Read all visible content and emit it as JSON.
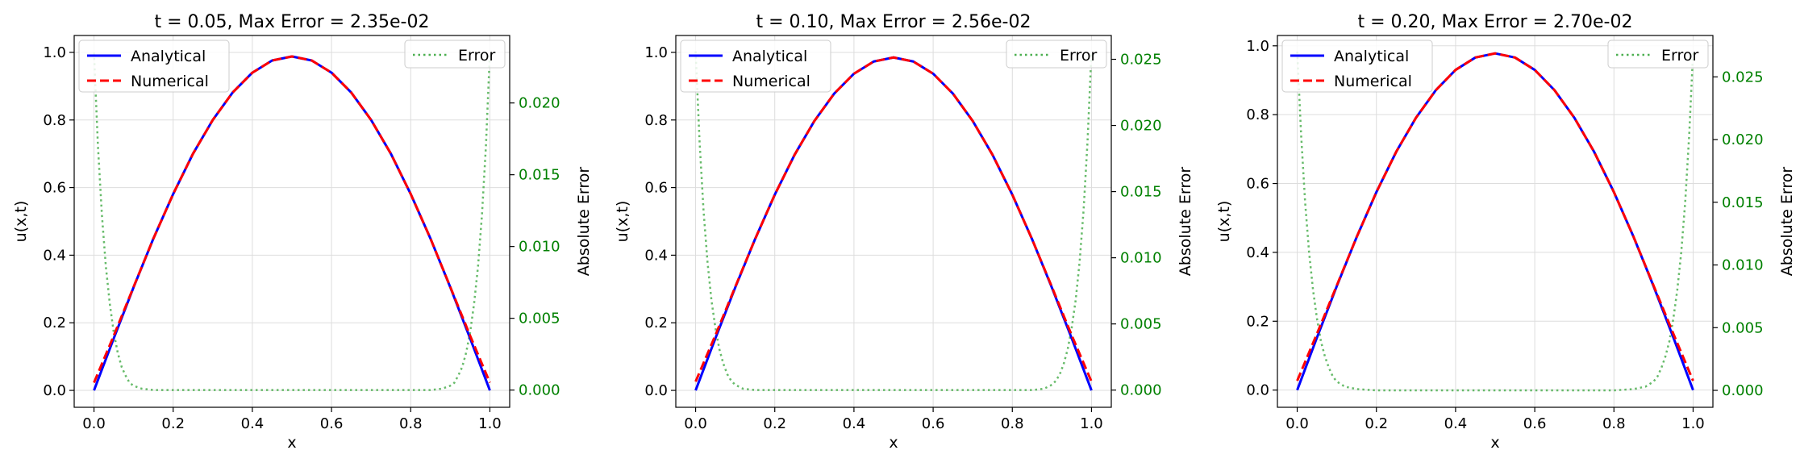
{
  "colors": {
    "analytical": "#0000ff",
    "numerical": "#ff0000",
    "error": "#4caf50",
    "error_axis": "#008000",
    "grid": "#dddddd"
  },
  "chart_data": [
    {
      "type": "line",
      "title": "t = 0.05, Max Error = 2.35e-02",
      "xlabel": "x",
      "ylabel": "u(x,t)",
      "ylabel_right": "Absolute Error",
      "xlim": [
        -0.05,
        1.05
      ],
      "ylim": [
        -0.05,
        1.05
      ],
      "ylim_right": [
        -0.0012,
        0.0247
      ],
      "xticks": [
        "0.0",
        "0.2",
        "0.4",
        "0.6",
        "0.8",
        "1.0"
      ],
      "yticks": [
        "0.0",
        "0.2",
        "0.4",
        "0.6",
        "0.8",
        "1.0"
      ],
      "yticks_right": [
        "0.000",
        "0.005",
        "0.010",
        "0.015",
        "0.020"
      ],
      "grid": true,
      "legend_left": {
        "placement": "upper-left",
        "entries": [
          "Analytical",
          "Numerical"
        ]
      },
      "legend_right": {
        "placement": "upper-right",
        "entries": [
          "Error"
        ]
      },
      "series": [
        {
          "name": "Analytical",
          "axis": "left",
          "style": "solid",
          "x": [
            0,
            0.05,
            0.1,
            0.15,
            0.2,
            0.25,
            0.3,
            0.35,
            0.4,
            0.45,
            0.5,
            0.55,
            0.6,
            0.65,
            0.7,
            0.75,
            0.8,
            0.85,
            0.9,
            0.95,
            1.0
          ],
          "y": [
            0.0,
            0.154,
            0.305,
            0.449,
            0.581,
            0.7,
            0.8,
            0.881,
            0.94,
            0.976,
            0.988,
            0.976,
            0.94,
            0.881,
            0.8,
            0.7,
            0.581,
            0.449,
            0.305,
            0.154,
            0.0
          ]
        },
        {
          "name": "Numerical",
          "axis": "left",
          "style": "dashed",
          "x": [
            0,
            0.05,
            0.1,
            0.15,
            0.2,
            0.25,
            0.3,
            0.35,
            0.4,
            0.45,
            0.5,
            0.55,
            0.6,
            0.65,
            0.7,
            0.75,
            0.8,
            0.85,
            0.9,
            0.95,
            1.0
          ],
          "y": [
            0.023,
            0.162,
            0.306,
            0.449,
            0.581,
            0.7,
            0.8,
            0.881,
            0.94,
            0.976,
            0.988,
            0.976,
            0.94,
            0.881,
            0.8,
            0.7,
            0.581,
            0.449,
            0.306,
            0.162,
            0.023
          ]
        },
        {
          "name": "Error",
          "axis": "right",
          "style": "dotted",
          "x": [
            0,
            0.01,
            0.02,
            0.03,
            0.04,
            0.05,
            0.06,
            0.07,
            0.08,
            0.09,
            0.1,
            0.12,
            0.15,
            0.2,
            0.3,
            0.4,
            0.5,
            0.6,
            0.7,
            0.8,
            0.85,
            0.88,
            0.9,
            0.91,
            0.92,
            0.93,
            0.94,
            0.95,
            0.96,
            0.97,
            0.98,
            0.99,
            1.0
          ],
          "y": [
            0.0235,
            0.017,
            0.0122,
            0.0086,
            0.006,
            0.004,
            0.0026,
            0.0016,
            0.001,
            0.0005,
            0.0003,
            0.0001,
            0.0,
            0.0,
            0.0,
            0.0,
            0.0,
            0.0,
            0.0,
            0.0,
            0.0,
            0.0001,
            0.0003,
            0.0005,
            0.001,
            0.0016,
            0.0026,
            0.004,
            0.006,
            0.0086,
            0.0122,
            0.017,
            0.0235
          ]
        }
      ]
    },
    {
      "type": "line",
      "title": "t = 0.10, Max Error = 2.56e-02",
      "xlabel": "x",
      "ylabel": "u(x,t)",
      "ylabel_right": "Absolute Error",
      "xlim": [
        -0.05,
        1.05
      ],
      "ylim": [
        -0.05,
        1.05
      ],
      "ylim_right": [
        -0.0013,
        0.0268
      ],
      "xticks": [
        "0.0",
        "0.2",
        "0.4",
        "0.6",
        "0.8",
        "1.0"
      ],
      "yticks": [
        "0.0",
        "0.2",
        "0.4",
        "0.6",
        "0.8",
        "1.0"
      ],
      "yticks_right": [
        "0.000",
        "0.005",
        "0.010",
        "0.015",
        "0.020",
        "0.025"
      ],
      "grid": true,
      "legend_left": {
        "placement": "upper-left",
        "entries": [
          "Analytical",
          "Numerical"
        ]
      },
      "legend_right": {
        "placement": "upper-right",
        "entries": [
          "Error"
        ]
      },
      "series": [
        {
          "name": "Analytical",
          "axis": "left",
          "style": "solid",
          "x": [
            0,
            0.05,
            0.1,
            0.15,
            0.2,
            0.25,
            0.3,
            0.35,
            0.4,
            0.45,
            0.5,
            0.55,
            0.6,
            0.65,
            0.7,
            0.75,
            0.8,
            0.85,
            0.9,
            0.95,
            1.0
          ],
          "y": [
            0.0,
            0.154,
            0.304,
            0.447,
            0.579,
            0.697,
            0.797,
            0.878,
            0.937,
            0.973,
            0.985,
            0.973,
            0.937,
            0.878,
            0.797,
            0.697,
            0.579,
            0.447,
            0.304,
            0.154,
            0.0
          ]
        },
        {
          "name": "Numerical",
          "axis": "left",
          "style": "dashed",
          "x": [
            0,
            0.05,
            0.1,
            0.15,
            0.2,
            0.25,
            0.3,
            0.35,
            0.4,
            0.45,
            0.5,
            0.55,
            0.6,
            0.65,
            0.7,
            0.75,
            0.8,
            0.85,
            0.9,
            0.95,
            1.0
          ],
          "y": [
            0.026,
            0.163,
            0.306,
            0.447,
            0.579,
            0.697,
            0.797,
            0.878,
            0.937,
            0.973,
            0.985,
            0.973,
            0.937,
            0.878,
            0.797,
            0.697,
            0.579,
            0.447,
            0.306,
            0.163,
            0.026
          ]
        },
        {
          "name": "Error",
          "axis": "right",
          "style": "dotted",
          "x": [
            0,
            0.01,
            0.02,
            0.03,
            0.04,
            0.05,
            0.06,
            0.07,
            0.08,
            0.09,
            0.1,
            0.12,
            0.15,
            0.2,
            0.3,
            0.4,
            0.5,
            0.6,
            0.7,
            0.8,
            0.85,
            0.88,
            0.9,
            0.91,
            0.92,
            0.93,
            0.94,
            0.95,
            0.96,
            0.97,
            0.98,
            0.99,
            1.0
          ],
          "y": [
            0.0256,
            0.0188,
            0.0136,
            0.0097,
            0.0068,
            0.0047,
            0.0031,
            0.002,
            0.0012,
            0.0007,
            0.0004,
            0.0001,
            0.0,
            0.0,
            0.0,
            0.0,
            0.0,
            0.0,
            0.0,
            0.0,
            0.0,
            0.0001,
            0.0004,
            0.0007,
            0.0012,
            0.002,
            0.0031,
            0.0047,
            0.0068,
            0.0097,
            0.0136,
            0.0188,
            0.0256
          ]
        }
      ]
    },
    {
      "type": "line",
      "title": "t = 0.20, Max Error = 2.70e-02",
      "xlabel": "x",
      "ylabel": "u(x,t)",
      "ylabel_right": "Absolute Error",
      "xlim": [
        -0.05,
        1.05
      ],
      "ylim": [
        -0.05,
        1.03
      ],
      "ylim_right": [
        -0.00135,
        0.0283
      ],
      "xticks": [
        "0.0",
        "0.2",
        "0.4",
        "0.6",
        "0.8",
        "1.0"
      ],
      "yticks": [
        "0.0",
        "0.2",
        "0.4",
        "0.6",
        "0.8",
        "1.0"
      ],
      "yticks_right": [
        "0.000",
        "0.005",
        "0.010",
        "0.015",
        "0.020",
        "0.025"
      ],
      "grid": true,
      "legend_left": {
        "placement": "upper-left",
        "entries": [
          "Analytical",
          "Numerical"
        ]
      },
      "legend_right": {
        "placement": "upper-right",
        "entries": [
          "Error"
        ]
      },
      "series": [
        {
          "name": "Analytical",
          "axis": "left",
          "style": "solid",
          "x": [
            0,
            0.05,
            0.1,
            0.15,
            0.2,
            0.25,
            0.3,
            0.35,
            0.4,
            0.45,
            0.5,
            0.55,
            0.6,
            0.65,
            0.7,
            0.75,
            0.8,
            0.85,
            0.9,
            0.95,
            1.0
          ],
          "y": [
            0.0,
            0.153,
            0.302,
            0.444,
            0.575,
            0.692,
            0.791,
            0.871,
            0.93,
            0.966,
            0.978,
            0.966,
            0.93,
            0.871,
            0.791,
            0.692,
            0.575,
            0.444,
            0.302,
            0.153,
            0.0
          ]
        },
        {
          "name": "Numerical",
          "axis": "left",
          "style": "dashed",
          "x": [
            0,
            0.05,
            0.1,
            0.15,
            0.2,
            0.25,
            0.3,
            0.35,
            0.4,
            0.45,
            0.5,
            0.55,
            0.6,
            0.65,
            0.7,
            0.75,
            0.8,
            0.85,
            0.9,
            0.95,
            1.0
          ],
          "y": [
            0.027,
            0.164,
            0.304,
            0.444,
            0.575,
            0.692,
            0.791,
            0.871,
            0.93,
            0.966,
            0.978,
            0.966,
            0.93,
            0.871,
            0.791,
            0.692,
            0.575,
            0.444,
            0.304,
            0.164,
            0.027
          ]
        },
        {
          "name": "Error",
          "axis": "right",
          "style": "dotted",
          "x": [
            0,
            0.01,
            0.02,
            0.03,
            0.04,
            0.05,
            0.06,
            0.07,
            0.08,
            0.09,
            0.1,
            0.12,
            0.15,
            0.2,
            0.3,
            0.4,
            0.5,
            0.6,
            0.7,
            0.8,
            0.85,
            0.88,
            0.9,
            0.91,
            0.92,
            0.93,
            0.94,
            0.95,
            0.96,
            0.97,
            0.98,
            0.99,
            1.0
          ],
          "y": [
            0.027,
            0.0203,
            0.015,
            0.011,
            0.008,
            0.0057,
            0.0039,
            0.0027,
            0.0018,
            0.0011,
            0.0007,
            0.0003,
            0.0001,
            0.0,
            0.0,
            0.0,
            0.0,
            0.0,
            0.0,
            0.0,
            0.0001,
            0.0003,
            0.0007,
            0.0011,
            0.0018,
            0.0027,
            0.0039,
            0.0057,
            0.008,
            0.011,
            0.015,
            0.0203,
            0.027
          ]
        }
      ]
    }
  ]
}
